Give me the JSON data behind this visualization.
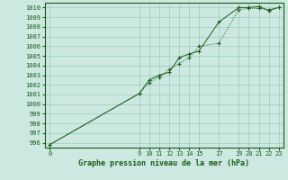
{
  "title": "Graphe pression niveau de la mer (hPa)",
  "bg_color": "#cce8e0",
  "grid_color": "#99ccbb",
  "line_color": "#1a5c1a",
  "ylim": [
    995.5,
    1010.5
  ],
  "xlim": [
    -0.5,
    23.5
  ],
  "yticks": [
    996,
    997,
    998,
    999,
    1000,
    1001,
    1002,
    1003,
    1004,
    1005,
    1006,
    1007,
    1008,
    1009,
    1010
  ],
  "xticks": [
    0,
    9,
    10,
    11,
    12,
    13,
    14,
    15,
    17,
    19,
    20,
    21,
    22,
    23
  ],
  "series1_x": [
    0,
    9,
    10,
    11,
    12,
    13,
    14,
    15,
    17,
    19,
    20,
    21,
    22,
    23
  ],
  "series1_y": [
    995.8,
    1001.1,
    1002.5,
    1003.0,
    1003.3,
    1004.8,
    1005.2,
    1005.5,
    1008.5,
    1010.0,
    1010.0,
    1010.1,
    1009.7,
    1010.0
  ],
  "series2_x": [
    0,
    9,
    10,
    11,
    12,
    13,
    14,
    15,
    17,
    19,
    20,
    21,
    22,
    23
  ],
  "series2_y": [
    995.8,
    1001.1,
    1002.2,
    1002.8,
    1003.6,
    1004.2,
    1004.8,
    1006.0,
    1006.3,
    1009.8,
    1009.9,
    1009.9,
    1009.8,
    1010.0
  ],
  "tick_fontsize": 5.0,
  "title_fontsize": 6.0,
  "tick_color": "#1a5c1a",
  "linewidth": 0.7,
  "markersize": 3.5,
  "markeredgewidth": 0.8
}
